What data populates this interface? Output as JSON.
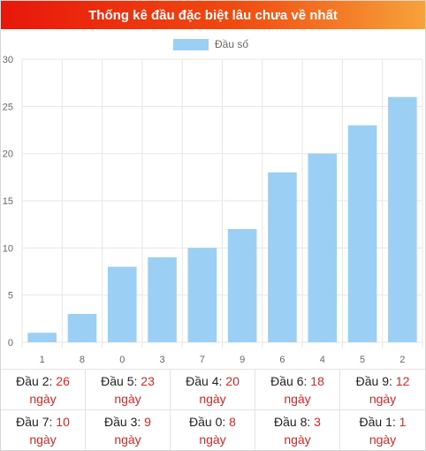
{
  "header": {
    "title": "Thống kê đầu đặc biệt lâu chưa về nhất"
  },
  "colors": {
    "bar": "#9bcff4",
    "grid": "#e6e6e6",
    "highlight": "#e02323"
  },
  "chart_data": {
    "type": "bar",
    "categories": [
      "1",
      "8",
      "0",
      "3",
      "7",
      "9",
      "6",
      "4",
      "5",
      "2"
    ],
    "series": [
      {
        "name": "Đầu số",
        "values": [
          1,
          3,
          8,
          9,
          10,
          12,
          18,
          20,
          23,
          26
        ]
      }
    ],
    "ylim": [
      0,
      30
    ],
    "yticks": [
      0,
      5,
      10,
      15,
      20,
      25,
      30
    ],
    "legend": "top-center",
    "grid": true
  },
  "stats": [
    {
      "label": "Đầu 2:",
      "value": "26",
      "unit": "ngày"
    },
    {
      "label": "Đầu 5:",
      "value": "23",
      "unit": "ngày"
    },
    {
      "label": "Đầu 4:",
      "value": "20",
      "unit": "ngày"
    },
    {
      "label": "Đầu 6:",
      "value": "18",
      "unit": "ngày"
    },
    {
      "label": "Đầu 9:",
      "value": "12",
      "unit": "ngày"
    },
    {
      "label": "Đầu 7:",
      "value": "10",
      "unit": "ngày"
    },
    {
      "label": "Đầu 3:",
      "value": "9",
      "unit": "ngày"
    },
    {
      "label": "Đầu 0:",
      "value": "8",
      "unit": "ngày"
    },
    {
      "label": "Đầu 8:",
      "value": "3",
      "unit": "ngày"
    },
    {
      "label": "Đầu 1:",
      "value": "1",
      "unit": "ngày"
    }
  ]
}
